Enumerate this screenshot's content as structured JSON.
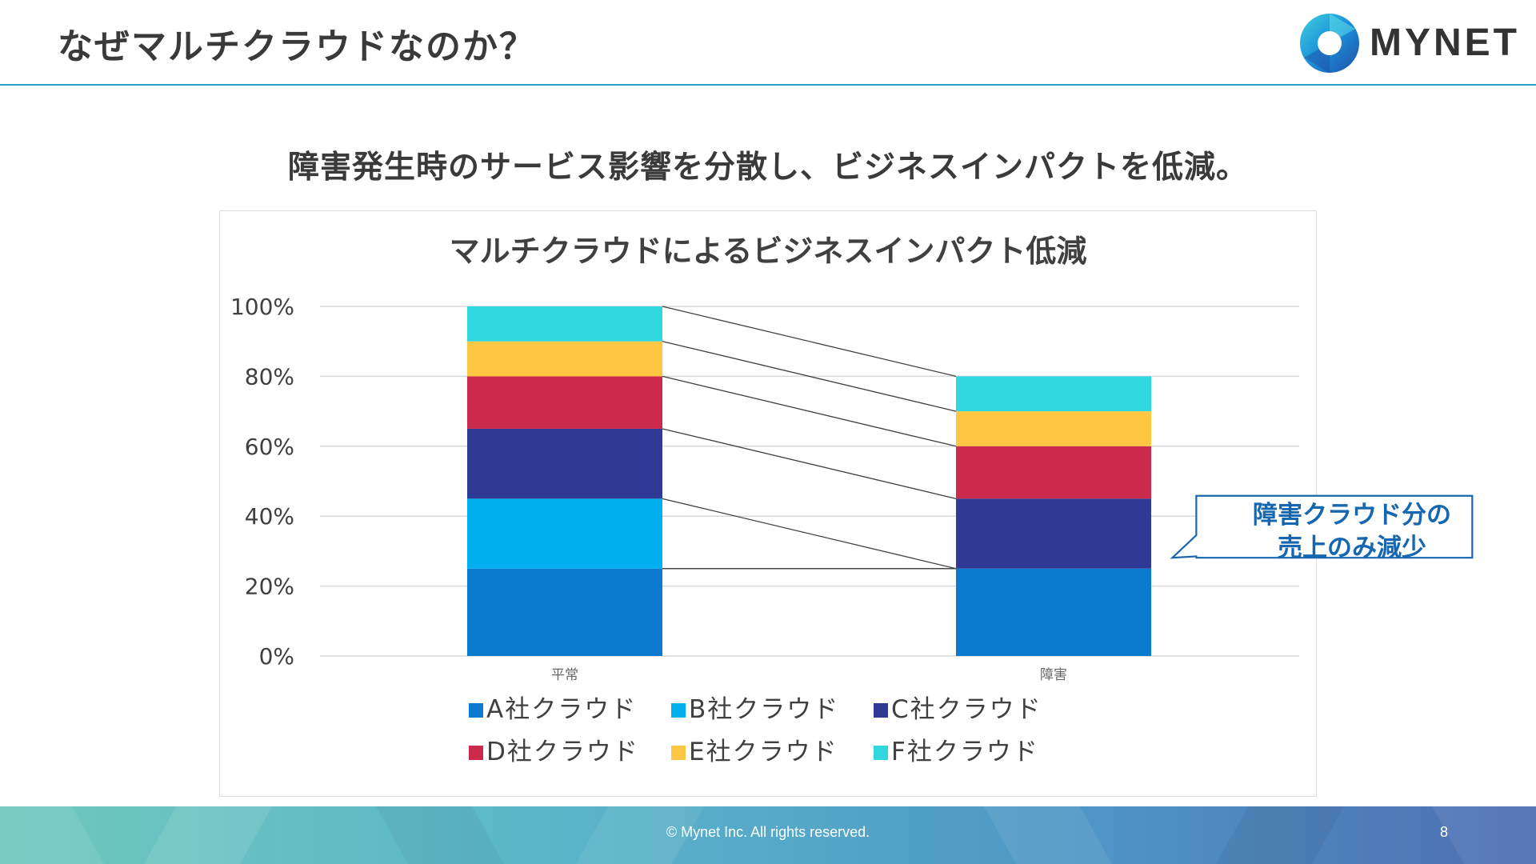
{
  "header": {
    "title": "なぜマルチクラウドなのか？",
    "logo_text": "MYNET"
  },
  "subtitle": "障害発生時のサービス影響を分散し、ビジネスインパクトを低減。",
  "callout": {
    "line1": "障害クラウド分の",
    "line2": "売上のみ減少"
  },
  "footer": {
    "copyright": "© Mynet Inc. All rights reserved.",
    "page_number": "8"
  },
  "colors": {
    "accent_line": "#2a9ec0",
    "callout_border": "#1667b0"
  },
  "chart_data": {
    "type": "bar",
    "stacked": true,
    "title": "マルチクラウドによるビジネスインパクト低減",
    "categories": [
      "平常",
      "障害"
    ],
    "yticks": [
      "0%",
      "20%",
      "40%",
      "60%",
      "80%",
      "100%"
    ],
    "ylim": [
      0,
      100
    ],
    "grid": true,
    "legend_position": "bottom",
    "series": [
      {
        "name": "A社クラウド",
        "color": "#0b7bd0",
        "values": [
          25,
          25
        ]
      },
      {
        "name": "B社クラウド",
        "color": "#00b0ee",
        "values": [
          20,
          0
        ]
      },
      {
        "name": "C社クラウド",
        "color": "#2e3a96",
        "values": [
          20,
          20
        ]
      },
      {
        "name": "D社クラウド",
        "color": "#cc2a4c",
        "values": [
          15,
          15
        ]
      },
      {
        "name": "E社クラウド",
        "color": "#fdc744",
        "values": [
          10,
          10
        ]
      },
      {
        "name": "F社クラウド",
        "color": "#30d7de",
        "values": [
          10,
          10
        ]
      }
    ]
  }
}
